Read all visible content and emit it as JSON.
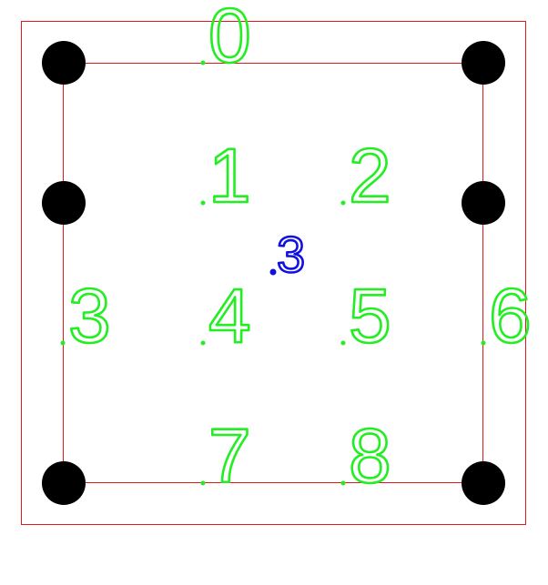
{
  "colors": {
    "outline": "#e01818",
    "hole": "#000000",
    "pin_label": "#22ee22",
    "origin_label": "#1010e0"
  },
  "holes": [
    {
      "name": "hole-top-left"
    },
    {
      "name": "hole-top-right"
    },
    {
      "name": "hole-mid-left"
    },
    {
      "name": "hole-mid-right"
    },
    {
      "name": "hole-bottom-left"
    },
    {
      "name": "hole-bottom-right"
    }
  ],
  "pins": [
    {
      "label": "0"
    },
    {
      "label": "1"
    },
    {
      "label": "2"
    },
    {
      "label": "3"
    },
    {
      "label": "4"
    },
    {
      "label": "5"
    },
    {
      "label": "6"
    },
    {
      "label": "7"
    },
    {
      "label": "8"
    }
  ],
  "origin": {
    "label": "3"
  }
}
